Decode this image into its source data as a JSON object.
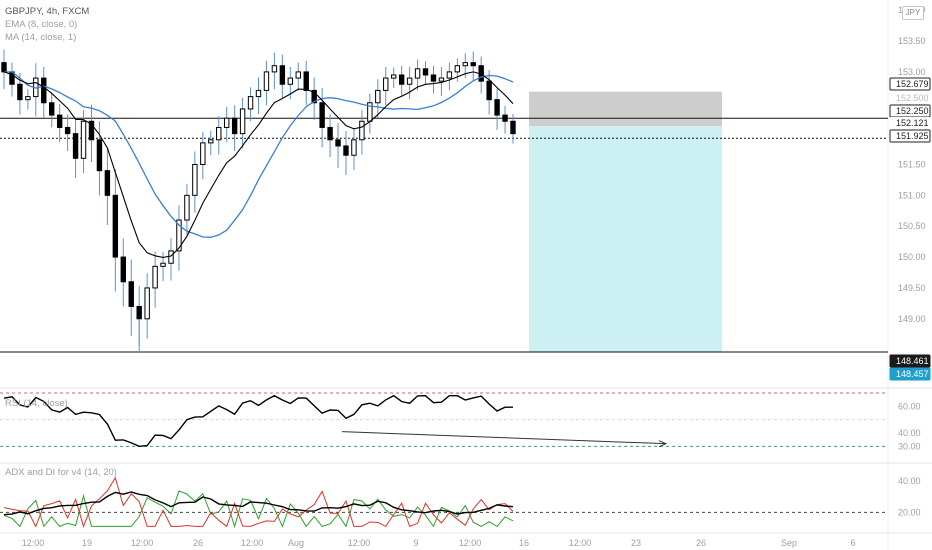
{
  "header": {
    "symbol_line": "GBPJPY, 4h, FXCM",
    "ema_label": "EMA (8, close, 0)",
    "ma_label": "MA (14, close, 1)",
    "currency_badge": "JPY"
  },
  "rsi_panel": {
    "label": "RSI (14, close)"
  },
  "adx_panel": {
    "label": "ADX and DI for v4 (14, 20)"
  },
  "colors": {
    "bull_candle": "#ffffff",
    "bear_candle": "#000000",
    "wick": "#5b8fd6",
    "ema_line": "#3a7fd5",
    "ma_line": "#000000",
    "stop_zone": "#c8c8c8",
    "target_zone": "#cdf0f2",
    "rsi_upper_level": "#e06060",
    "rsi_lower_level": "#3aa060",
    "adx_line": "#000000",
    "di_plus": "#2ca02c",
    "di_minus": "#e0302a",
    "price_tag_current": "#1e9fd0"
  },
  "chart_data": [
    {
      "type": "candlestick",
      "title": "GBPJPY, 4h, FXCM",
      "x_ticks": [
        "12:00",
        "19",
        "12:00",
        "26",
        "12:00",
        "Aug",
        "12:00",
        "9",
        "12:00",
        "16",
        "12:00",
        "23",
        "26",
        "Sep",
        "6"
      ],
      "y_ticks": [
        149.0,
        149.5,
        150.0,
        150.5,
        151.0,
        151.5,
        152.0,
        152.5,
        153.0,
        153.5,
        154.0
      ],
      "y_range": [
        148.3,
        154.1
      ],
      "price_tags": [
        {
          "label": "152.679",
          "value": 152.679,
          "style": "outline"
        },
        {
          "label": "152.500",
          "value": 152.5,
          "style": "faint"
        },
        {
          "label": "152.250",
          "value": 152.25,
          "style": "outline"
        },
        {
          "label": "152.121",
          "value": 152.121,
          "style": "plain"
        },
        {
          "label": "151.925",
          "value": 151.925,
          "style": "outline"
        },
        {
          "label": "148.461",
          "value": 148.461,
          "style": "dark"
        },
        {
          "label": "148.457",
          "value": 148.457,
          "style": "current"
        }
      ],
      "horizontal_lines": [
        152.25,
        151.925,
        148.461
      ],
      "position_tool": {
        "type": "short",
        "entry": 152.121,
        "stop": 152.679,
        "target": 148.461
      },
      "close_series": [
        153.0,
        152.8,
        152.55,
        152.6,
        152.9,
        152.5,
        152.3,
        152.1,
        152.0,
        151.6,
        152.2,
        151.9,
        151.4,
        151.0,
        150.0,
        149.6,
        149.2,
        149.0,
        149.5,
        149.85,
        149.9,
        150.1,
        150.6,
        151.0,
        151.5,
        151.85,
        151.9,
        152.1,
        152.25,
        152.0,
        152.4,
        152.6,
        152.7,
        153.0,
        153.1,
        152.8,
        152.9,
        153.0,
        152.7,
        152.5,
        152.1,
        151.9,
        151.8,
        151.65,
        151.9,
        152.2,
        152.5,
        152.7,
        152.9,
        152.95,
        152.8,
        152.9,
        153.05,
        152.95,
        152.85,
        152.9,
        153.0,
        153.1,
        153.15,
        153.1,
        152.85,
        152.55,
        152.3,
        152.2,
        152.0
      ]
    },
    {
      "type": "line",
      "title": "RSI (14, close)",
      "y_ticks": [
        30.0,
        40.0,
        60.0
      ],
      "upper_level": 70,
      "lower_level": 30
    },
    {
      "type": "line",
      "title": "ADX and DI for v4 (14, 20)",
      "y_ticks": [
        20.0,
        40.0
      ],
      "key_level": 20,
      "series": [
        {
          "name": "ADX"
        },
        {
          "name": "+DI"
        },
        {
          "name": "-DI"
        }
      ]
    }
  ]
}
